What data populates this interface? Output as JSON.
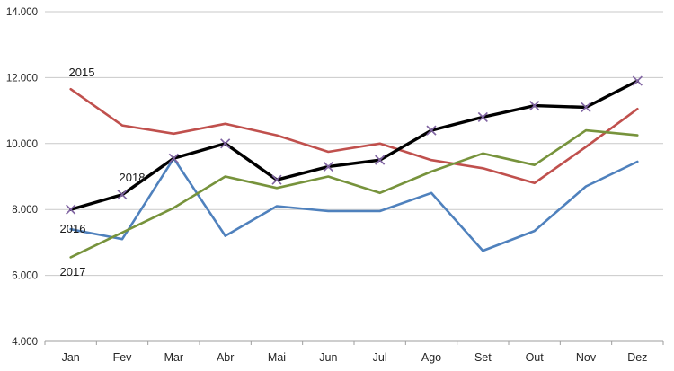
{
  "chart_data": {
    "type": "line",
    "title": "",
    "xlabel": "",
    "ylabel": "",
    "categories": [
      "Jan",
      "Fev",
      "Mar",
      "Abr",
      "Mai",
      "Jun",
      "Jul",
      "Ago",
      "Set",
      "Out",
      "Nov",
      "Dez"
    ],
    "series": [
      {
        "name": "2015",
        "color": "#C0504D",
        "marker": "none",
        "values": [
          11650,
          10550,
          10300,
          10600,
          10250,
          9750,
          10000,
          9500,
          9250,
          8800,
          9900,
          11050
        ]
      },
      {
        "name": "2016",
        "color": "#4F81BD",
        "marker": "none",
        "values": [
          7400,
          7100,
          9550,
          7200,
          8100,
          7950,
          7950,
          8500,
          6750,
          7350,
          8700,
          9450
        ]
      },
      {
        "name": "2017",
        "color": "#77933C",
        "marker": "none",
        "values": [
          6550,
          7300,
          8050,
          9000,
          8650,
          9000,
          8500,
          9150,
          9700,
          9350,
          10400,
          10250
        ]
      },
      {
        "name": "2018",
        "color": "#000000",
        "marker": "x",
        "marker_color": "#8064A2",
        "values": [
          8000,
          8450,
          9550,
          10000,
          8900,
          9300,
          9500,
          10400,
          10800,
          11150,
          11100,
          11900
        ]
      }
    ],
    "y_axis": {
      "min": 4000,
      "max": 14000,
      "step": 2000,
      "tick_labels": [
        "4.000",
        "6.000",
        "8.000",
        "10.000",
        "12.000",
        "14.000"
      ]
    },
    "grid": true,
    "legend_position": "inline-series-labels",
    "colors": {
      "gridline": "#C9C9C9",
      "axis_line": "#9E9E9E",
      "tick_text": "#262626",
      "background": "#FFFFFF"
    }
  }
}
